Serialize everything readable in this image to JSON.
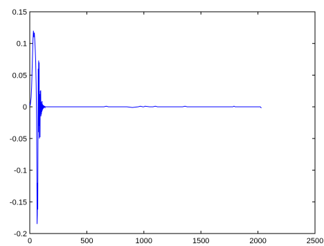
{
  "chart_data": {
    "type": "line",
    "title": "",
    "xlabel": "",
    "ylabel": "",
    "xlim": [
      0,
      2500
    ],
    "ylim": [
      -0.2,
      0.15
    ],
    "grid": false,
    "legend": "none",
    "x_ticks": [
      0,
      500,
      1000,
      1500,
      2000,
      2500
    ],
    "x_tick_labels": [
      "0",
      "500",
      "1000",
      "1500",
      "2000",
      "2500"
    ],
    "y_ticks": [
      0.15,
      0.1,
      0.05,
      0,
      -0.05,
      -0.1,
      -0.15,
      -0.2
    ],
    "y_tick_labels": [
      "0.15",
      "0.1",
      "0.05",
      "0",
      "-0.05",
      "-0.1",
      "-0.15",
      "-0.2"
    ],
    "series": [
      {
        "color": "#0000ff",
        "x": [
          0,
          4,
          8,
          12,
          16,
          20,
          24,
          28,
          32,
          36,
          40,
          44,
          48,
          52,
          56,
          60,
          63,
          64,
          66,
          68,
          70,
          72,
          74,
          76,
          78,
          80,
          82,
          84,
          86,
          88,
          90,
          92,
          94,
          96,
          98,
          100,
          102,
          104,
          106,
          108,
          110,
          112,
          114,
          116,
          118,
          120,
          122,
          124,
          126,
          128,
          130,
          132,
          134,
          136,
          138,
          140,
          142,
          144,
          146,
          148,
          150,
          155,
          160,
          165,
          170,
          175,
          180,
          190,
          200,
          220,
          250,
          300,
          400,
          500,
          600,
          650,
          670,
          690,
          750,
          800,
          850,
          900,
          950,
          970,
          990,
          1000,
          1010,
          1050,
          1080,
          1100,
          1120,
          1200,
          1300,
          1340,
          1360,
          1380,
          1400,
          1500,
          1600,
          1700,
          1780,
          1790,
          1800,
          1900,
          2000,
          2010,
          2020,
          2030
        ],
        "y": [
          0.005,
          0.002,
          0.008,
          0.015,
          0.03,
          0.055,
          0.08,
          0.105,
          0.12,
          0.11,
          0.117,
          0.105,
          0.09,
          0.07,
          0.035,
          -0.02,
          -0.13,
          -0.185,
          -0.17,
          -0.12,
          -0.162,
          -0.05,
          0.06,
          -0.04,
          0.073,
          -0.03,
          0.07,
          -0.05,
          -0.01,
          0.02,
          -0.048,
          0.025,
          -0.01,
          0.026,
          -0.015,
          0.008,
          -0.012,
          0.005,
          -0.008,
          0.009,
          -0.006,
          0.004,
          -0.004,
          0.003,
          -0.003,
          0.002,
          -0.002,
          0.002,
          -0.001,
          0.001,
          -0.001,
          0.001,
          -0.001,
          0.0,
          0.0,
          0.0,
          0.0,
          0.0,
          0.0,
          0.0,
          0.0,
          0.0,
          0.0,
          0.0,
          0.0,
          0.0,
          0.0,
          0.0,
          0.0,
          0.0,
          0.0,
          0.0,
          0.0,
          0.0,
          0.0,
          0.0,
          0.001,
          0.0,
          0.0,
          0.0,
          0.0,
          -0.001,
          0.0,
          0.001,
          0.0,
          0.0,
          0.001,
          0.0,
          0.0,
          0.001,
          0.0,
          0.0,
          0.0,
          0.0,
          0.001,
          0.0,
          0.0,
          0.0,
          0.0,
          0.0,
          0.0,
          0.001,
          0.0,
          0.0,
          0.0,
          0.0,
          0.0,
          -0.002
        ]
      }
    ]
  }
}
